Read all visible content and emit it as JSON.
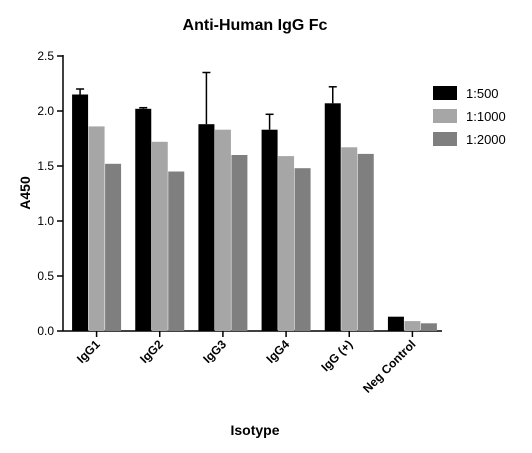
{
  "chart_data": {
    "type": "bar",
    "title": "Anti-Human IgG Fc",
    "xlabel": "Isotype",
    "ylabel": "A450",
    "ylim": [
      0,
      2.5
    ],
    "yticks": [
      "0.0",
      "0.5",
      "1.0",
      "1.5",
      "2.0",
      "2.5"
    ],
    "categories": [
      "IgG1",
      "IgG2",
      "IgG3",
      "IgG4",
      "IgG (+)",
      "Neg Control"
    ],
    "series": [
      {
        "name": "1:500",
        "color": "#000000",
        "values": [
          2.15,
          2.02,
          1.88,
          1.83,
          2.07,
          0.13
        ],
        "errors": [
          0.05,
          0.01,
          0.47,
          0.14,
          0.15,
          0
        ]
      },
      {
        "name": "1:1000",
        "color": "#a6a6a6",
        "values": [
          1.86,
          1.72,
          1.83,
          1.59,
          1.67,
          0.09
        ],
        "errors": [
          0,
          0,
          0,
          0,
          0,
          0
        ]
      },
      {
        "name": "1:2000",
        "color": "#7f7f7f",
        "values": [
          1.52,
          1.45,
          1.6,
          1.48,
          1.61,
          0.07
        ],
        "errors": [
          0,
          0,
          0,
          0,
          0,
          0
        ]
      }
    ],
    "legend": "top-right",
    "grid": false
  }
}
